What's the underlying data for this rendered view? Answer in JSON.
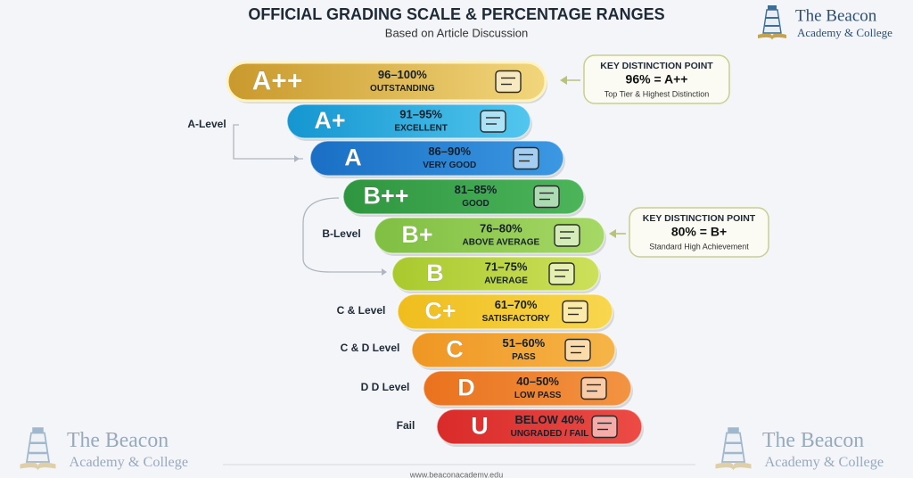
{
  "header": {
    "title": "OFFICIAL GRADING SCALE & PERCENTAGE RANGES",
    "subtitle": "Based on Article Discussion"
  },
  "logo": {
    "name": "The Beacon",
    "tagline": "Academy & College"
  },
  "grades": [
    {
      "letter": "A++",
      "range": "96–100%",
      "label": "OUTSTANDING"
    },
    {
      "letter": "A+",
      "range": "91–95%",
      "label": "EXCELLENT"
    },
    {
      "letter": "A",
      "range": "86–90%",
      "label": "VERY GOOD"
    },
    {
      "letter": "B++",
      "range": "81–85%",
      "label": "GOOD"
    },
    {
      "letter": "B+",
      "range": "76–80%",
      "label": "ABOVE AVERAGE"
    },
    {
      "letter": "B",
      "range": "71–75%",
      "label": "AVERAGE"
    },
    {
      "letter": "C+",
      "range": "61–70%",
      "label": "SATISFACTORY"
    },
    {
      "letter": "C",
      "range": "51–60%",
      "label": "PASS"
    },
    {
      "letter": "D",
      "range": "40–50%",
      "label": "LOW PASS"
    },
    {
      "letter": "U",
      "range": "BELOW 40%",
      "label": "UNGRADED / FAIL"
    }
  ],
  "levels": [
    "A-Level",
    "B-Level",
    "C & Level",
    "C & D Level",
    "D D Level",
    "Fail"
  ],
  "callouts": [
    {
      "heading": "KEY DISTINCTION POINT",
      "rule": "96% = A++",
      "note": "Top Tier & Highest Distinction"
    },
    {
      "heading": "KEY DISTINCTION POINT",
      "rule": "80% = B+",
      "note": "Standard High Achievement"
    }
  ],
  "footer": "www.beaconacademy.edu"
}
